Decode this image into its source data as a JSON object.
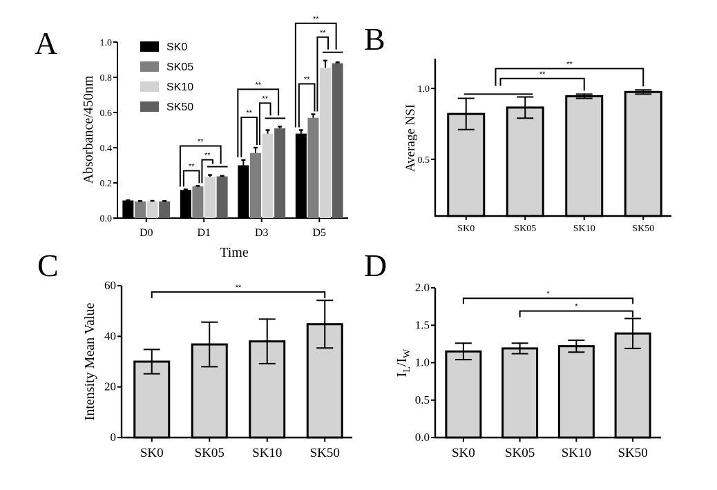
{
  "chart_data": [
    {
      "id": "A",
      "panel_label": "A",
      "type": "bar",
      "grouped": true,
      "title": "",
      "xlabel": "Time",
      "ylabel": "Absorbance/450nm",
      "ylim": [
        0,
        1.0
      ],
      "yticks": [
        0.0,
        0.2,
        0.4,
        0.6,
        0.8,
        1.0
      ],
      "ytick_labels": [
        "0.0",
        "0.2",
        "0.4",
        "0.6",
        "0.8",
        "1.0"
      ],
      "categories": [
        "D0",
        "D1",
        "D3",
        "D5"
      ],
      "legend_position": "top-left",
      "series": [
        {
          "name": "SK0",
          "color": "#000000",
          "values": [
            0.1,
            0.16,
            0.3,
            0.48
          ],
          "errors": [
            0.002,
            0.003,
            0.03,
            0.02
          ]
        },
        {
          "name": "SK05",
          "color": "#7f7f7f",
          "values": [
            0.095,
            0.18,
            0.37,
            0.57
          ],
          "errors": [
            0.002,
            0.003,
            0.03,
            0.02
          ]
        },
        {
          "name": "SK10",
          "color": "#d3d3d3",
          "values": [
            0.095,
            0.235,
            0.48,
            0.855
          ],
          "errors": [
            0.003,
            0.01,
            0.02,
            0.04
          ]
        },
        {
          "name": "SK50",
          "color": "#606060",
          "values": [
            0.095,
            0.237,
            0.51,
            0.88
          ],
          "errors": [
            0.002,
            0.003,
            0.01,
            0.005
          ]
        }
      ],
      "significance": [
        {
          "group": "D1",
          "label": "**",
          "from": "SK0",
          "to": "SK50-pair",
          "level": 3
        },
        {
          "group": "D1",
          "label": "**",
          "from": "SK0",
          "to": "SK05",
          "level": 1
        },
        {
          "group": "D1",
          "label": "**",
          "from": "SK05",
          "to": "SK10-SK50",
          "level": 2
        },
        {
          "group": "D3",
          "label": "**",
          "from": "SK0",
          "to": "SK50-pair",
          "level": 3
        },
        {
          "group": "D3",
          "label": "**",
          "from": "SK0",
          "to": "SK05",
          "level": 1
        },
        {
          "group": "D3",
          "label": "**",
          "from": "SK05",
          "to": "SK10-SK50",
          "level": 2
        },
        {
          "group": "D5",
          "label": "**",
          "from": "SK0",
          "to": "SK50-pair",
          "level": 3
        },
        {
          "group": "D5",
          "label": "**",
          "from": "SK0",
          "to": "SK05",
          "level": 1
        },
        {
          "group": "D5",
          "label": "**",
          "from": "SK05",
          "to": "SK10-SK50",
          "level": 2
        }
      ]
    },
    {
      "id": "B",
      "panel_label": "B",
      "type": "bar",
      "title": "",
      "xlabel": "",
      "ylabel": "Average NSI",
      "ylim": [
        0.1,
        1.21
      ],
      "yticks": [
        0.5,
        1.0
      ],
      "ytick_labels": [
        "0.5",
        "1.0"
      ],
      "categories": [
        "SK0",
        "SK05",
        "SK10",
        "SK50"
      ],
      "values": [
        0.82,
        0.865,
        0.945,
        0.975
      ],
      "errors": [
        0.11,
        0.075,
        0.015,
        0.015
      ],
      "bar_color": "#d3d3d3",
      "significance": [
        {
          "label": "**",
          "from": "SK0-SK05",
          "to": "SK10"
        },
        {
          "label": "**",
          "from": "SK0-SK05",
          "to": "SK50"
        }
      ]
    },
    {
      "id": "C",
      "panel_label": "C",
      "type": "bar",
      "title": "",
      "xlabel": "",
      "ylabel": "Intensity Mean Value",
      "ylim": [
        0,
        60
      ],
      "yticks": [
        0,
        20,
        40,
        60
      ],
      "ytick_labels": [
        "0",
        "20",
        "40",
        "60"
      ],
      "categories": [
        "SK0",
        "SK05",
        "SK10",
        "SK50"
      ],
      "values": [
        30,
        36.8,
        38,
        44.8
      ],
      "errors": [
        4.8,
        8.8,
        8.8,
        9.4
      ],
      "bar_color": "#d3d3d3",
      "significance": [
        {
          "label": "**",
          "from": "SK0",
          "to": "SK50"
        }
      ]
    },
    {
      "id": "D",
      "panel_label": "D",
      "type": "bar",
      "title": "",
      "xlabel": "",
      "ylabel_main": "I",
      "ylabel_sub1": "L",
      "ylabel_mid": "/I",
      "ylabel_sub2": "W",
      "ylim": [
        0,
        2.0
      ],
      "yticks": [
        0.0,
        0.5,
        1.0,
        1.5,
        2.0
      ],
      "ytick_labels": [
        "0.0",
        "0.5",
        "1.0",
        "1.5",
        "2.0"
      ],
      "categories": [
        "SK0",
        "SK05",
        "SK10",
        "SK50"
      ],
      "values": [
        1.15,
        1.19,
        1.22,
        1.39
      ],
      "errors": [
        0.11,
        0.07,
        0.08,
        0.2
      ],
      "bar_color": "#d3d3d3",
      "significance": [
        {
          "label": "*",
          "from": "SK0",
          "to": "SK50"
        },
        {
          "label": "*",
          "from": "SK05",
          "to": "SK50"
        }
      ]
    }
  ]
}
